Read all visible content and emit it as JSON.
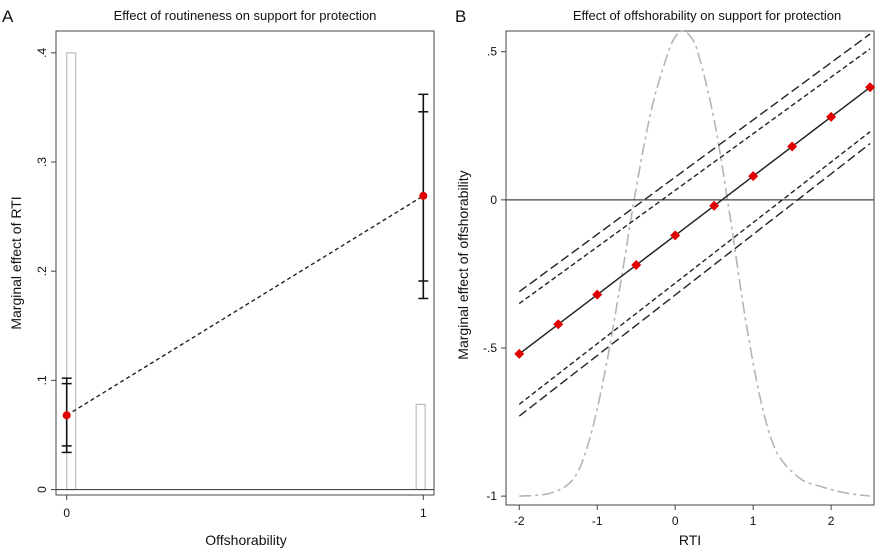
{
  "chart_data": [
    {
      "panel_letter": "A",
      "type": "line",
      "title": "Effect of routineness on support for protection",
      "xlabel": "Offshorability",
      "ylabel": "Marginal effect of RTI",
      "x_ticks": [
        "0",
        "1"
      ],
      "y_ticks": [
        ".4",
        ".3",
        ".2",
        ".1",
        "0"
      ],
      "xlim": [
        -0.03,
        1.03
      ],
      "ylim": [
        -0.005,
        0.42
      ],
      "reference_line_y": 0,
      "points": [
        {
          "x": 0,
          "y": 0.068,
          "ci90": [
            0.04,
            0.097
          ],
          "ci95": [
            0.034,
            0.102
          ]
        },
        {
          "x": 1,
          "y": 0.269,
          "ci90": [
            0.191,
            0.346
          ],
          "ci95": [
            0.175,
            0.362
          ]
        }
      ],
      "histogram": [
        {
          "x": 0.0,
          "height": 0.4
        },
        {
          "x": 0.98,
          "height": 0.078
        }
      ],
      "colors": {
        "point": "#e00000",
        "line": "#222222",
        "hist": "#bdbdbd"
      }
    },
    {
      "panel_letter": "B",
      "type": "line",
      "title": "Effect of offshorability on support for protection",
      "xlabel": "RTI",
      "ylabel": "Marginal effect of offshorability",
      "x_ticks": [
        "-2",
        "-1",
        "0",
        "1",
        "2"
      ],
      "y_ticks": [
        ".5",
        "0",
        "-.5",
        "-1"
      ],
      "xlim": [
        -2.17,
        2.55
      ],
      "ylim": [
        -1.03,
        0.57
      ],
      "reference_line_y": 0,
      "x": [
        -2,
        -1.5,
        -1,
        -0.5,
        0,
        0.5,
        1,
        1.5,
        2,
        2.5
      ],
      "y": [
        -0.52,
        -0.42,
        -0.32,
        -0.22,
        -0.12,
        -0.02,
        0.08,
        0.18,
        0.28,
        0.38
      ],
      "ci_inner": {
        "x": [
          -2,
          2.5
        ],
        "upper": [
          -0.35,
          0.51
        ],
        "lower": [
          -0.69,
          0.23
        ]
      },
      "ci_outer": {
        "x": [
          -2,
          2.5
        ],
        "upper": [
          -0.31,
          0.56
        ],
        "lower": [
          -0.73,
          0.19
        ]
      },
      "density": {
        "x": [
          -2.0,
          -1.6,
          -1.3,
          -1.1,
          -0.9,
          -0.7,
          -0.5,
          -0.3,
          -0.1,
          0.0,
          0.1,
          0.2,
          0.3,
          0.5,
          0.7,
          0.9,
          1.1,
          1.3,
          1.6,
          1.9,
          2.2,
          2.5
        ],
        "y": [
          -1.0,
          -0.99,
          -0.94,
          -0.81,
          -0.58,
          -0.28,
          0.04,
          0.31,
          0.49,
          0.55,
          0.57,
          0.55,
          0.49,
          0.27,
          -0.05,
          -0.4,
          -0.68,
          -0.85,
          -0.94,
          -0.97,
          -0.99,
          -1.0
        ]
      },
      "colors": {
        "point": "#e00000",
        "line": "#222222",
        "density": "#b5b5b5"
      }
    }
  ]
}
